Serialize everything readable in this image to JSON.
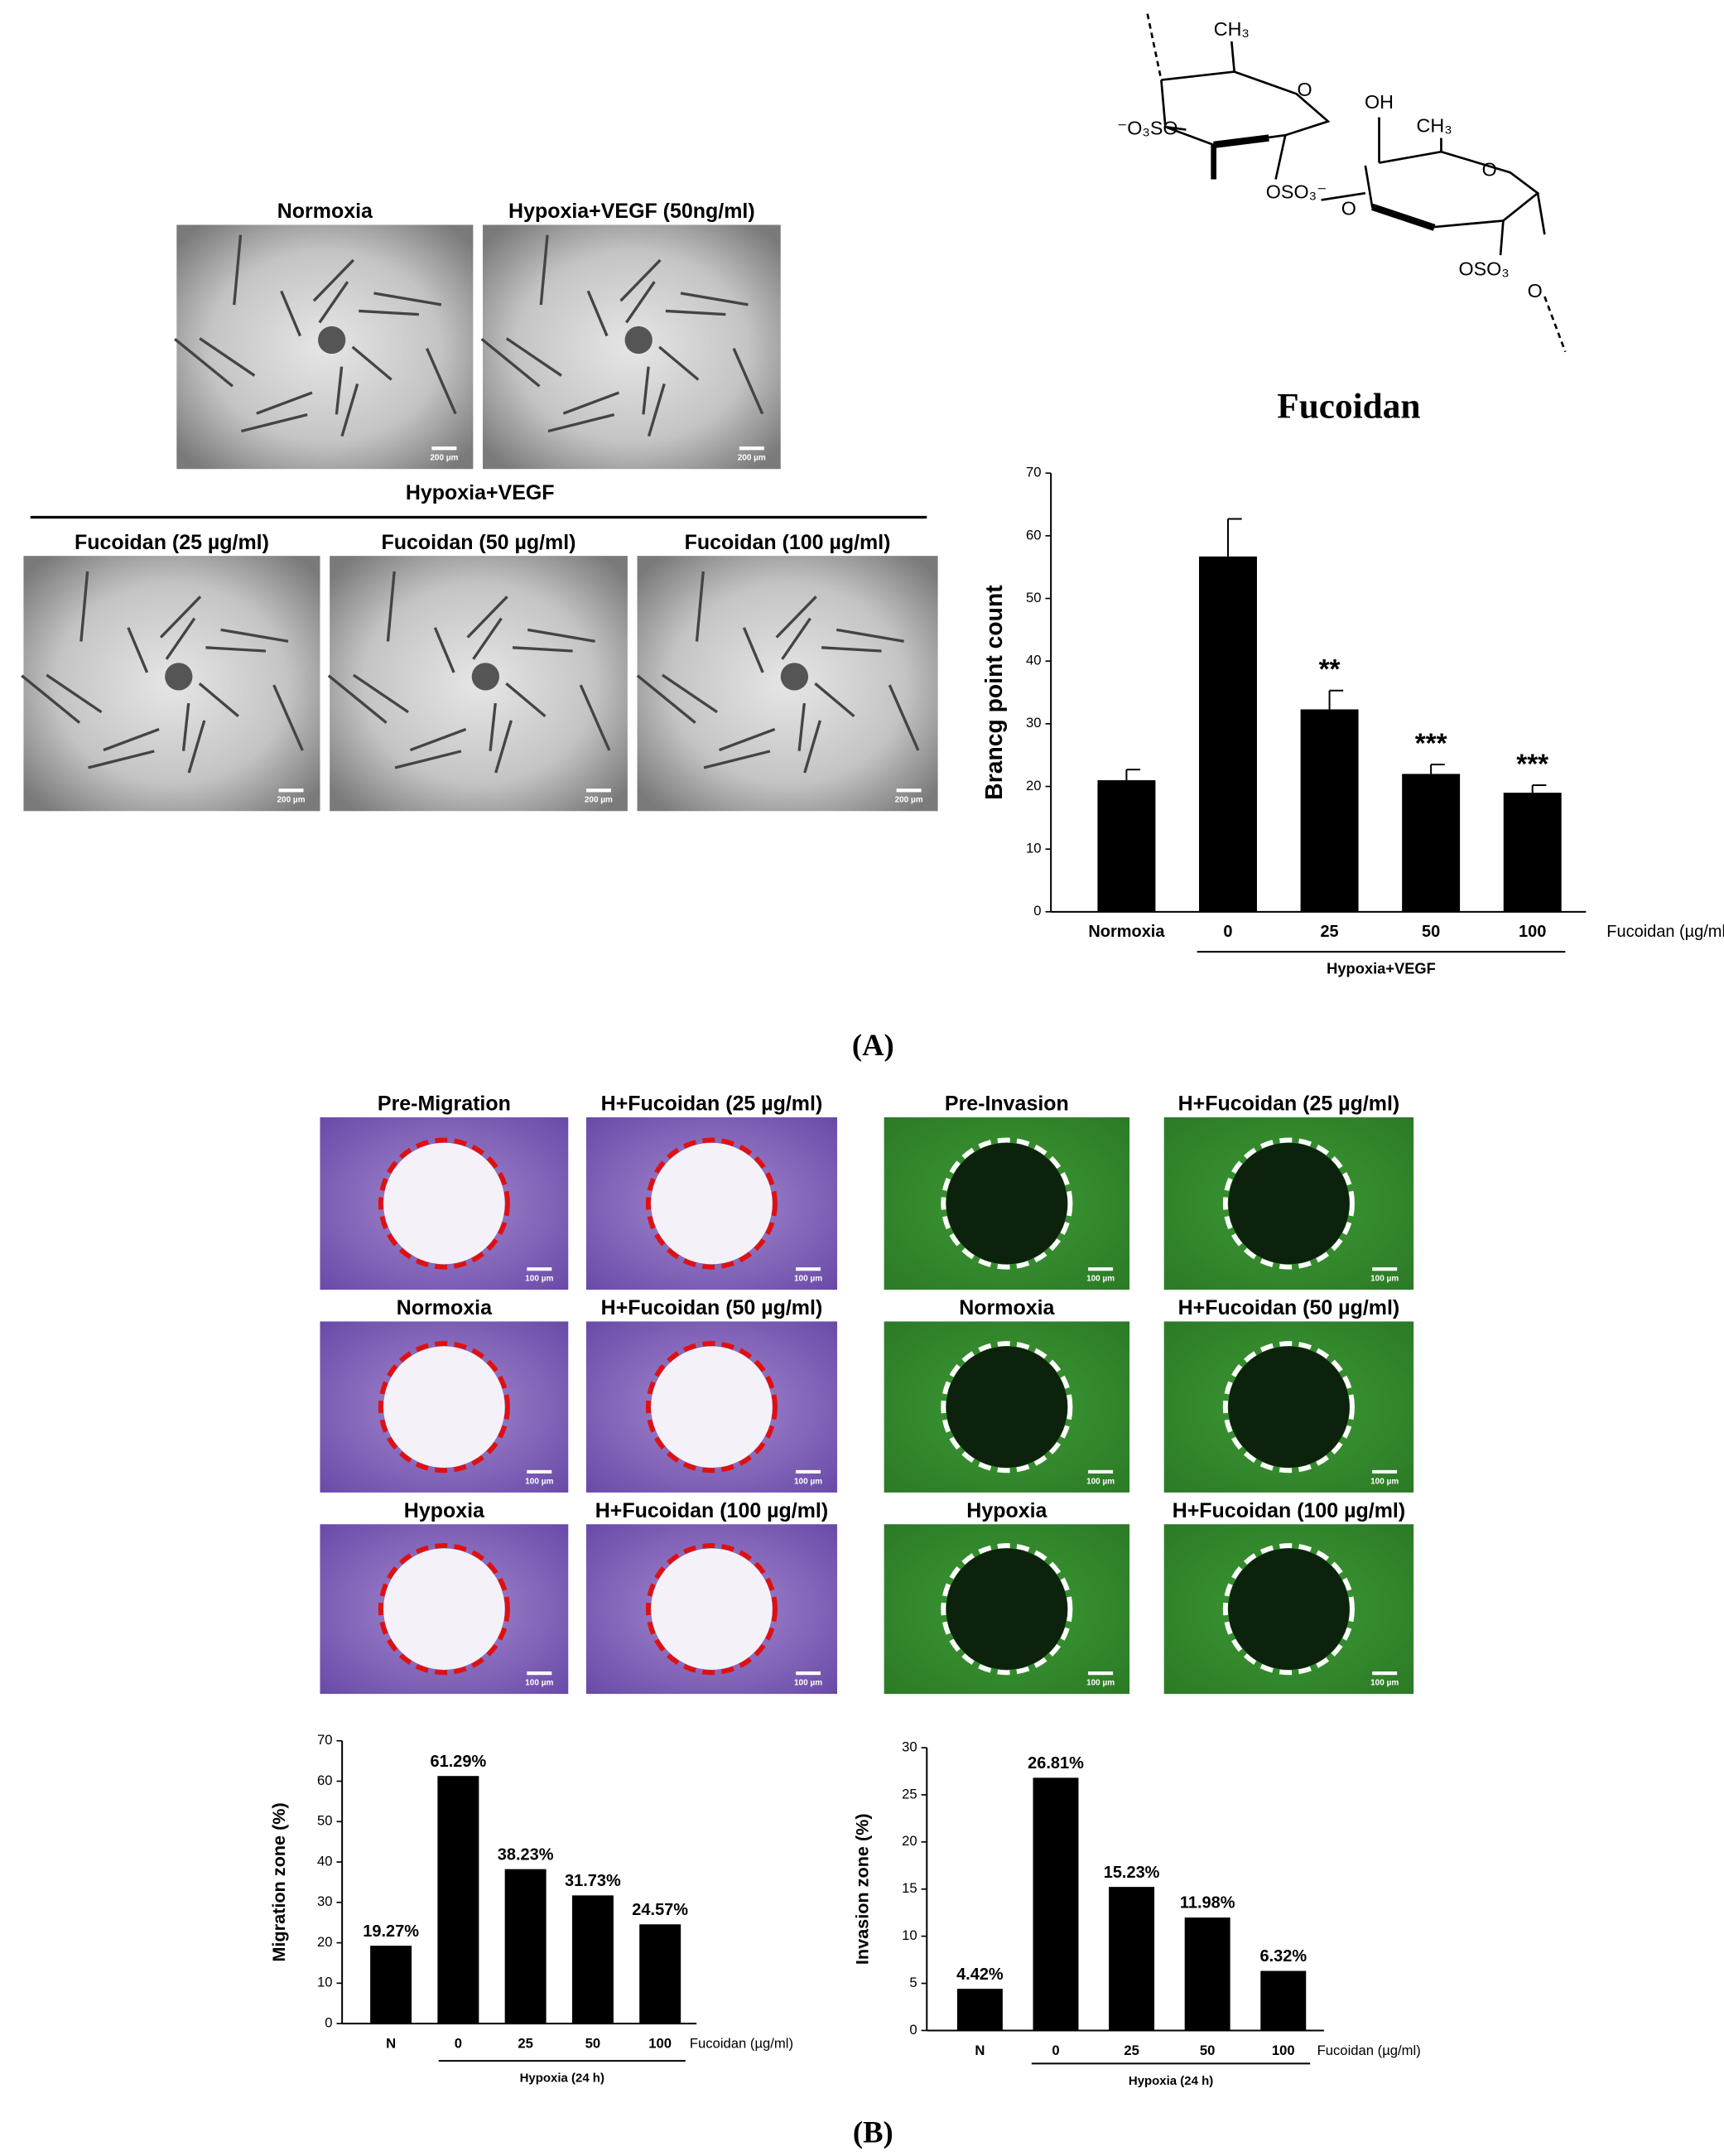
{
  "panel_a": {
    "label": "(A)",
    "group_label": "Hypoxia+VEGF",
    "micrographs": [
      {
        "title": "Normoxia",
        "scale": "200 µm"
      },
      {
        "title": "Hypoxia+VEGF (50ng/ml)",
        "scale": "200 µm"
      },
      {
        "title": "Fucoidan (25 µg/ml)",
        "scale": "200 µm"
      },
      {
        "title": "Fucoidan (50 µg/ml)",
        "scale": "200 µm"
      },
      {
        "title": "Fucoidan (100 µg/ml)",
        "scale": "200 µm"
      }
    ]
  },
  "structure": {
    "name": "Fucoidan",
    "labels": [
      "CH₃",
      "⁻O₃SO",
      "O",
      "OSO₃⁻",
      "O",
      "OH",
      "CH₃",
      "O",
      "OSO₃",
      "O"
    ]
  },
  "panel_b": {
    "label": "(B)",
    "migration_images": [
      {
        "title": "Pre-Migration",
        "scale": "100 µm"
      },
      {
        "title": "H+Fucoidan (25 µg/ml)",
        "scale": "100 µm"
      },
      {
        "title": "Normoxia",
        "scale": "100 µm"
      },
      {
        "title": "H+Fucoidan (50 µg/ml)",
        "scale": "100 µm"
      },
      {
        "title": "Hypoxia",
        "scale": "100 µm"
      },
      {
        "title": "H+Fucoidan (100 µg/ml)",
        "scale": "100 µm"
      }
    ],
    "invasion_images": [
      {
        "title": "Pre-Invasion",
        "scale": "100 µm"
      },
      {
        "title": "H+Fucoidan (25 µg/ml)",
        "scale": "100 µm"
      },
      {
        "title": "Normoxia",
        "scale": "100 µm"
      },
      {
        "title": "H+Fucoidan (50 µg/ml)",
        "scale": "100 µm"
      },
      {
        "title": "Hypoxia",
        "scale": "100 µm"
      },
      {
        "title": "H+Fucoidan (100 µg/ml)",
        "scale": "100 µm"
      }
    ]
  },
  "chart_data": [
    {
      "type": "bar",
      "y_label": "Brancg point count",
      "x_note": "Fucoidan (µg/ml)",
      "group_label": "Hypoxia+VEGF",
      "categories": [
        "Normoxia",
        "0",
        "25",
        "50",
        "100"
      ],
      "values": [
        21,
        56.7,
        32.3,
        22,
        19
      ],
      "errors": [
        1.7,
        6,
        3,
        1.5,
        1.2
      ],
      "significance": [
        null,
        null,
        "**",
        "***",
        "***"
      ],
      "color": "#000000",
      "ylim": [
        0,
        70
      ],
      "yticks": [
        0,
        10,
        20,
        30,
        40,
        50,
        60,
        70
      ]
    },
    {
      "type": "bar",
      "y_label": "Migration zone (%)",
      "x_note": "Fucoidan (µg/ml)",
      "group_label": "Hypoxia (24 h)",
      "categories": [
        "N",
        "0",
        "25",
        "50",
        "100"
      ],
      "values": [
        19.27,
        61.29,
        38.23,
        31.73,
        24.57
      ],
      "value_labels": [
        "19.27%",
        "61.29%",
        "38.23%",
        "31.73%",
        "24.57%"
      ],
      "color": "#000000",
      "ylim": [
        0,
        70
      ],
      "yticks": [
        0,
        10,
        20,
        30,
        40,
        50,
        60,
        70
      ]
    },
    {
      "type": "bar",
      "y_label": "Invasion zone (%)",
      "x_note": "Fucoidan (µg/ml)",
      "group_label": "Hypoxia (24 h)",
      "categories": [
        "N",
        "0",
        "25",
        "50",
        "100"
      ],
      "values": [
        4.42,
        26.81,
        15.23,
        11.98,
        6.32
      ],
      "value_labels": [
        "4.42%",
        "26.81%",
        "15.23%",
        "11.98%",
        "6.32%"
      ],
      "color": "#000000",
      "ylim": [
        0,
        30
      ],
      "yticks": [
        0,
        5,
        10,
        15,
        20,
        25,
        30
      ]
    }
  ]
}
